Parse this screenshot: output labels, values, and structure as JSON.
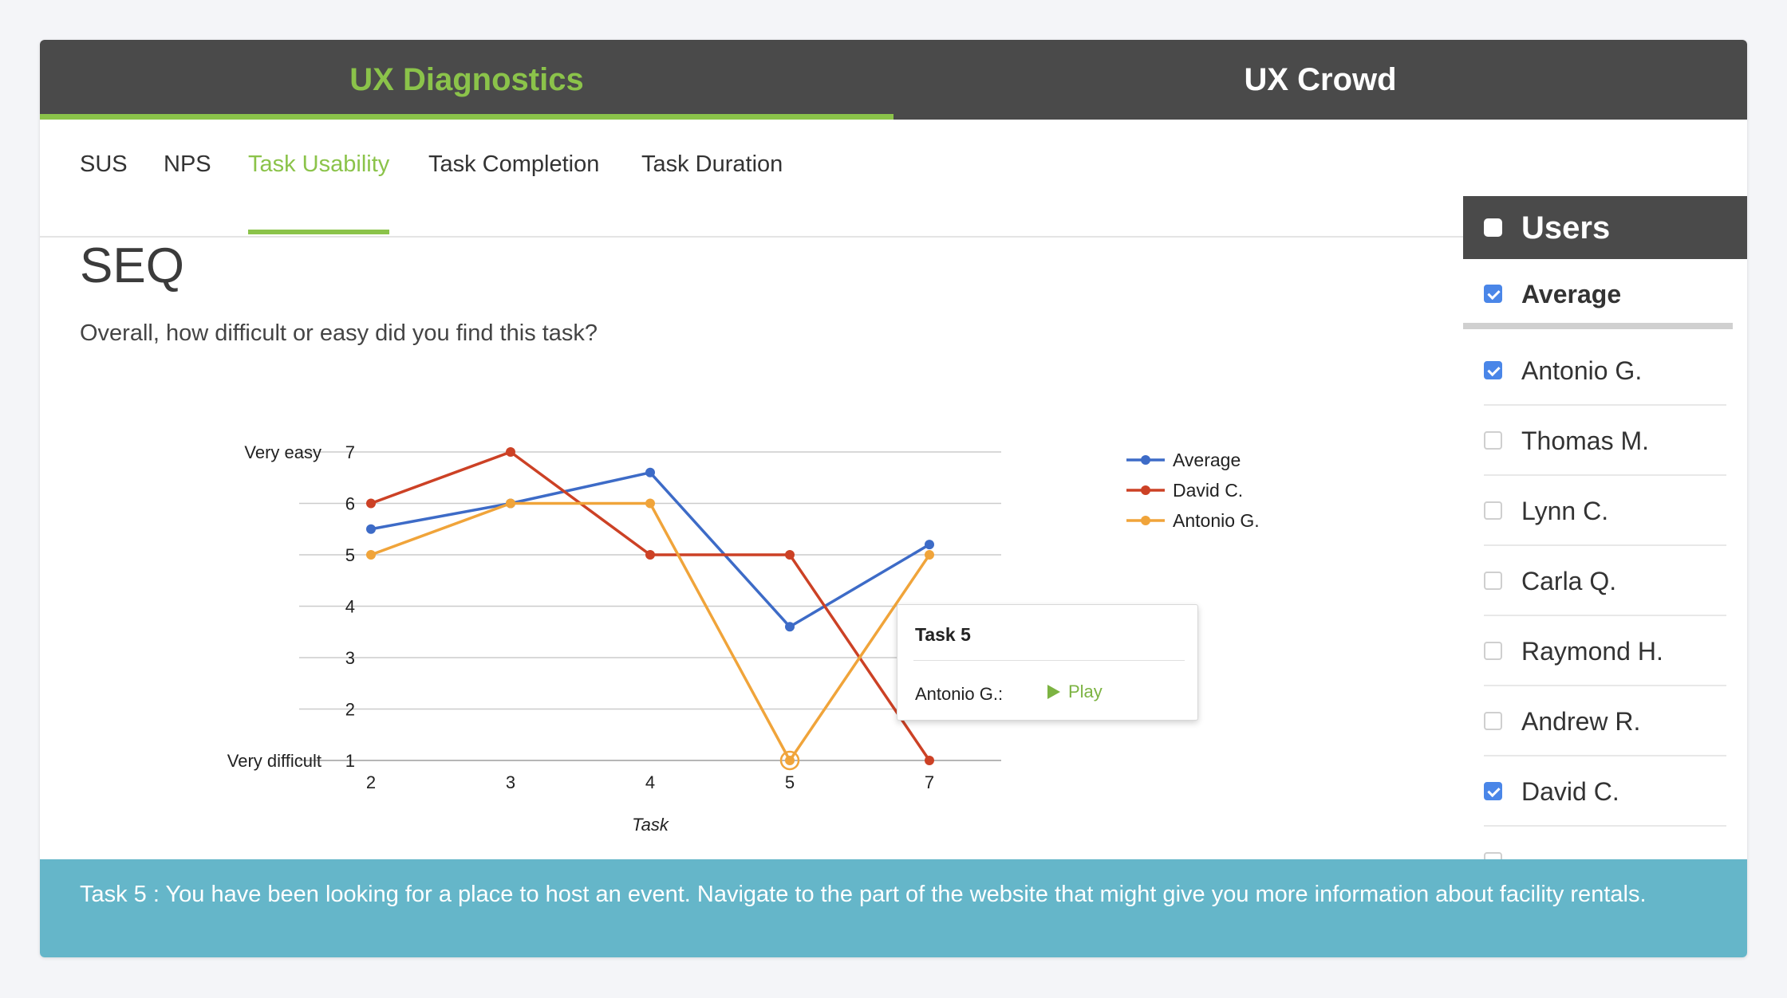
{
  "top_tabs": [
    {
      "label": "UX Diagnostics",
      "active": true
    },
    {
      "label": "UX Crowd",
      "active": false
    }
  ],
  "sub_tabs": [
    {
      "label": "SUS"
    },
    {
      "label": "NPS"
    },
    {
      "label": "Task Usability",
      "active": true
    },
    {
      "label": "Task Completion"
    },
    {
      "label": "Task Duration"
    }
  ],
  "seq": {
    "title": "SEQ",
    "question": "Overall, how difficult or easy did you find this task?"
  },
  "chart_data": {
    "type": "line",
    "categories": [
      "2",
      "3",
      "4",
      "5",
      "7"
    ],
    "xlabel": "Task",
    "ylim": [
      1,
      7
    ],
    "yticks": [
      1,
      2,
      3,
      4,
      5,
      6,
      7
    ],
    "ytick_labels": {
      "1": "Very difficult",
      "7": "Very easy"
    },
    "legend_position": "right",
    "series": [
      {
        "name": "Average",
        "color": "#3d6bc7",
        "values": [
          5.5,
          6,
          6.6,
          3.6,
          5.2
        ]
      },
      {
        "name": "David C.",
        "color": "#cc4125",
        "values": [
          6,
          7,
          5,
          5,
          1
        ]
      },
      {
        "name": "Antonio G.",
        "color": "#f0a43a",
        "values": [
          5,
          6,
          6,
          1,
          5
        ]
      }
    ],
    "highlight": {
      "series": "Antonio G.",
      "category": "5"
    }
  },
  "tooltip": {
    "title": "Task 5",
    "label": "Antonio G.:",
    "action": "Play"
  },
  "users": {
    "title": "Users",
    "items": [
      {
        "name": "Average",
        "checked": true
      },
      {
        "name": "Antonio G.",
        "checked": true
      },
      {
        "name": "Thomas M.",
        "checked": false
      },
      {
        "name": "Lynn C.",
        "checked": false
      },
      {
        "name": "Carla Q.",
        "checked": false
      },
      {
        "name": "Raymond H.",
        "checked": false
      },
      {
        "name": "Andrew R.",
        "checked": false
      },
      {
        "name": "David C.",
        "checked": true
      }
    ]
  },
  "task_description": "Task 5 : You have been looking for a place to host an event. Navigate to the part of the website that might give you more information about facility rentals."
}
